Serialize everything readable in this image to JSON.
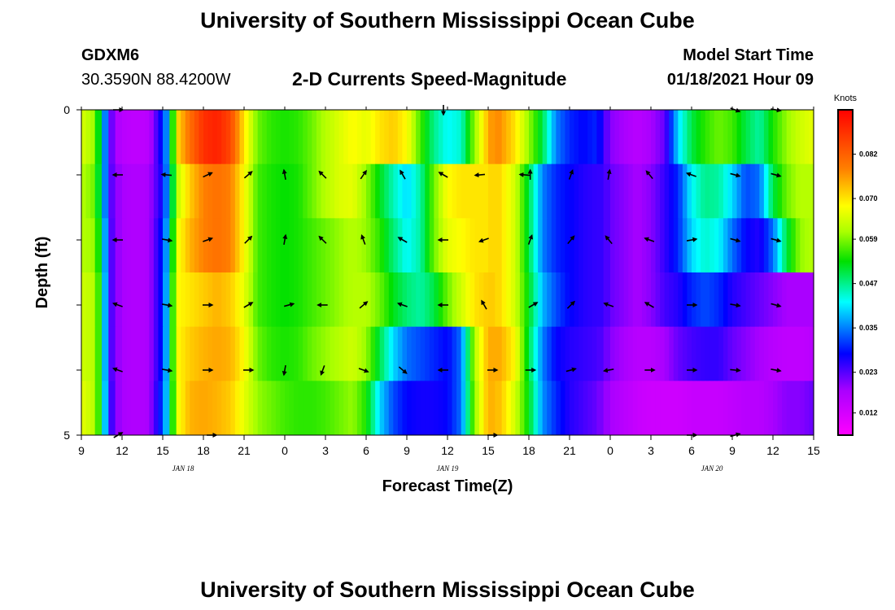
{
  "header": {
    "title": "University of Southern Mississippi Ocean Cube",
    "station_id": "GDXM6",
    "coordinates": "30.3590N 88.4200W",
    "product": "2-D Currents Speed-Magnitude",
    "model_start_label": "Model Start Time",
    "model_start_value": "01/18/2021 Hour 09"
  },
  "footer": {
    "title": "University of Southern Mississippi Ocean Cube"
  },
  "chart_data": {
    "type": "heatmap",
    "title": "2-D Currents Speed-Magnitude",
    "xlabel": "Forecast Time(Z)",
    "ylabel": "Depth (ft)",
    "x_tick_labels": [
      "9",
      "12",
      "15",
      "18",
      "21",
      "0",
      "3",
      "6",
      "9",
      "12",
      "15",
      "18",
      "21",
      "0",
      "3",
      "6",
      "9",
      "12",
      "15"
    ],
    "x_range_hours": [
      0,
      54
    ],
    "date_labels": [
      {
        "label": "JAN 18",
        "hour": 7.5
      },
      {
        "label": "JAN 19",
        "hour": 27
      },
      {
        "label": "JAN 20",
        "hour": 46.5
      }
    ],
    "y_tick_labels": [
      "0",
      "",
      "",
      "",
      "",
      "5"
    ],
    "ylim": [
      0,
      5
    ],
    "colorbar": {
      "unit": "Knots",
      "tick_labels": [
        "0.012",
        "0.023",
        "0.035",
        "0.047",
        "0.059",
        "0.070",
        "0.082"
      ],
      "range": [
        0.006,
        0.094
      ],
      "stops": [
        {
          "v": 0.006,
          "color": "#ff00ff"
        },
        {
          "v": 0.018,
          "color": "#aa00ff"
        },
        {
          "v": 0.028,
          "color": "#0000ff"
        },
        {
          "v": 0.042,
          "color": "#00ffff"
        },
        {
          "v": 0.053,
          "color": "#00e000"
        },
        {
          "v": 0.061,
          "color": "#aaff00"
        },
        {
          "v": 0.068,
          "color": "#ffff00"
        },
        {
          "v": 0.078,
          "color": "#ff8000"
        },
        {
          "v": 0.094,
          "color": "#ff0000"
        }
      ]
    },
    "depth_row_keys": [
      "surface",
      "d1",
      "d2",
      "d3",
      "d4",
      "bottom"
    ],
    "speed_grid": {
      "hours": [
        0,
        1,
        1.5,
        2,
        2.5,
        3,
        4,
        5,
        6,
        6.5,
        7,
        8,
        9,
        10,
        11,
        12,
        13,
        14,
        15,
        16,
        17,
        18,
        19,
        20,
        21,
        22,
        23,
        24,
        25,
        26,
        27,
        28,
        29,
        30,
        30.5,
        31,
        32,
        33,
        34,
        35,
        36,
        37,
        38,
        38.5,
        39,
        40,
        41,
        42,
        43,
        44,
        45,
        46,
        47,
        48,
        49,
        50,
        51,
        52,
        53,
        54
      ],
      "surface": [
        0.065,
        0.06,
        0.045,
        0.025,
        0.018,
        0.016,
        0.015,
        0.016,
        0.03,
        0.04,
        0.07,
        0.08,
        0.088,
        0.09,
        0.085,
        0.07,
        0.058,
        0.055,
        0.054,
        0.055,
        0.058,
        0.062,
        0.065,
        0.068,
        0.066,
        0.07,
        0.072,
        0.068,
        0.056,
        0.047,
        0.042,
        0.044,
        0.06,
        0.074,
        0.078,
        0.076,
        0.07,
        0.06,
        0.05,
        0.035,
        0.03,
        0.028,
        0.03,
        0.025,
        0.02,
        0.018,
        0.016,
        0.018,
        0.022,
        0.04,
        0.05,
        0.055,
        0.058,
        0.056,
        0.05,
        0.046,
        0.054,
        0.06,
        0.064,
        0.066
      ],
      "d1": [
        0.062,
        0.058,
        0.045,
        0.025,
        0.02,
        0.018,
        0.017,
        0.018,
        0.028,
        0.04,
        0.062,
        0.072,
        0.078,
        0.08,
        0.078,
        0.068,
        0.056,
        0.054,
        0.053,
        0.054,
        0.058,
        0.062,
        0.065,
        0.066,
        0.06,
        0.052,
        0.045,
        0.04,
        0.046,
        0.058,
        0.068,
        0.07,
        0.07,
        0.07,
        0.072,
        0.07,
        0.064,
        0.05,
        0.035,
        0.03,
        0.028,
        0.026,
        0.025,
        0.025,
        0.022,
        0.02,
        0.018,
        0.02,
        0.025,
        0.03,
        0.042,
        0.047,
        0.046,
        0.04,
        0.032,
        0.034,
        0.05,
        0.058,
        0.062,
        0.062
      ],
      "d2": [
        0.062,
        0.06,
        0.048,
        0.026,
        0.02,
        0.018,
        0.017,
        0.018,
        0.03,
        0.042,
        0.066,
        0.074,
        0.078,
        0.08,
        0.078,
        0.068,
        0.056,
        0.054,
        0.053,
        0.054,
        0.056,
        0.058,
        0.06,
        0.062,
        0.06,
        0.055,
        0.048,
        0.042,
        0.046,
        0.058,
        0.066,
        0.068,
        0.07,
        0.07,
        0.072,
        0.07,
        0.064,
        0.05,
        0.035,
        0.03,
        0.028,
        0.026,
        0.025,
        0.025,
        0.022,
        0.02,
        0.018,
        0.02,
        0.025,
        0.03,
        0.04,
        0.044,
        0.042,
        0.034,
        0.028,
        0.026,
        0.034,
        0.05,
        0.06,
        0.062
      ],
      "d3": [
        0.064,
        0.062,
        0.05,
        0.026,
        0.02,
        0.018,
        0.017,
        0.018,
        0.03,
        0.044,
        0.068,
        0.07,
        0.072,
        0.074,
        0.072,
        0.066,
        0.056,
        0.054,
        0.053,
        0.054,
        0.056,
        0.058,
        0.06,
        0.062,
        0.062,
        0.058,
        0.052,
        0.048,
        0.046,
        0.05,
        0.058,
        0.064,
        0.07,
        0.072,
        0.072,
        0.07,
        0.064,
        0.052,
        0.038,
        0.032,
        0.028,
        0.026,
        0.025,
        0.025,
        0.022,
        0.02,
        0.018,
        0.02,
        0.024,
        0.026,
        0.03,
        0.032,
        0.03,
        0.026,
        0.024,
        0.022,
        0.02,
        0.018,
        0.018,
        0.018
      ],
      "d4": [
        0.064,
        0.062,
        0.05,
        0.026,
        0.02,
        0.018,
        0.017,
        0.018,
        0.03,
        0.044,
        0.068,
        0.072,
        0.074,
        0.075,
        0.074,
        0.068,
        0.058,
        0.055,
        0.054,
        0.055,
        0.058,
        0.06,
        0.062,
        0.064,
        0.06,
        0.05,
        0.04,
        0.034,
        0.032,
        0.03,
        0.028,
        0.034,
        0.062,
        0.074,
        0.075,
        0.074,
        0.068,
        0.05,
        0.035,
        0.028,
        0.026,
        0.025,
        0.024,
        0.023,
        0.02,
        0.018,
        0.016,
        0.016,
        0.018,
        0.022,
        0.024,
        0.025,
        0.025,
        0.022,
        0.02,
        0.018,
        0.016,
        0.015,
        0.015,
        0.016
      ],
      "bottom": [
        0.066,
        0.062,
        0.05,
        0.028,
        0.02,
        0.018,
        0.017,
        0.018,
        0.032,
        0.044,
        0.066,
        0.074,
        0.075,
        0.074,
        0.072,
        0.066,
        0.06,
        0.058,
        0.056,
        0.055,
        0.055,
        0.056,
        0.058,
        0.06,
        0.054,
        0.04,
        0.032,
        0.028,
        0.027,
        0.027,
        0.028,
        0.034,
        0.06,
        0.074,
        0.074,
        0.072,
        0.064,
        0.052,
        0.036,
        0.03,
        0.026,
        0.024,
        0.022,
        0.02,
        0.018,
        0.016,
        0.014,
        0.013,
        0.013,
        0.013,
        0.014,
        0.014,
        0.014,
        0.015,
        0.016,
        0.016,
        0.018,
        0.02,
        0.02,
        0.022
      ]
    },
    "arrow_layers": [
      {
        "depth": 0,
        "vectors": [
          {
            "hour": 2.7,
            "deg": 0
          },
          {
            "hour": 26.7,
            "deg": 90
          },
          {
            "hour": 48.2,
            "deg": 20
          },
          {
            "hour": 51.2,
            "deg": 10
          }
        ]
      },
      {
        "depth": 1,
        "vectors": [
          {
            "hour": 2.7,
            "deg": 180
          },
          {
            "hour": 6.3,
            "deg": 185
          },
          {
            "hour": 9.3,
            "deg": -25
          },
          {
            "hour": 12.3,
            "deg": -40
          },
          {
            "hour": 15.0,
            "deg": -100
          },
          {
            "hour": 17.8,
            "deg": -135
          },
          {
            "hour": 20.8,
            "deg": -55
          },
          {
            "hour": 23.7,
            "deg": -120
          },
          {
            "hour": 26.7,
            "deg": -150
          },
          {
            "hour": 29.4,
            "deg": 175
          },
          {
            "hour": 32.7,
            "deg": 185
          },
          {
            "hour": 33.1,
            "deg": -90
          },
          {
            "hour": 36.1,
            "deg": -70
          },
          {
            "hour": 38.9,
            "deg": -80
          },
          {
            "hour": 41.9,
            "deg": -130
          },
          {
            "hour": 45.0,
            "deg": -160
          },
          {
            "hour": 48.2,
            "deg": 15
          },
          {
            "hour": 51.2,
            "deg": 15
          }
        ]
      },
      {
        "depth": 2,
        "vectors": [
          {
            "hour": 2.7,
            "deg": 180
          },
          {
            "hour": 6.3,
            "deg": 10
          },
          {
            "hour": 9.3,
            "deg": -20
          },
          {
            "hour": 12.3,
            "deg": -45
          },
          {
            "hour": 15.0,
            "deg": -80
          },
          {
            "hour": 17.8,
            "deg": -135
          },
          {
            "hour": 20.8,
            "deg": -110
          },
          {
            "hour": 23.7,
            "deg": -150
          },
          {
            "hour": 26.7,
            "deg": 180
          },
          {
            "hour": 29.7,
            "deg": 160
          },
          {
            "hour": 33.1,
            "deg": -70
          },
          {
            "hour": 36.1,
            "deg": -50
          },
          {
            "hour": 38.9,
            "deg": -130
          },
          {
            "hour": 41.9,
            "deg": -160
          },
          {
            "hour": 45.0,
            "deg": -10
          },
          {
            "hour": 48.2,
            "deg": 15
          },
          {
            "hour": 51.2,
            "deg": 15
          }
        ]
      },
      {
        "depth": 3,
        "vectors": [
          {
            "hour": 2.7,
            "deg": -160
          },
          {
            "hour": 6.3,
            "deg": 10
          },
          {
            "hour": 9.3,
            "deg": 0
          },
          {
            "hour": 12.3,
            "deg": -30
          },
          {
            "hour": 15.3,
            "deg": -15
          },
          {
            "hour": 17.8,
            "deg": 180
          },
          {
            "hour": 20.8,
            "deg": -40
          },
          {
            "hour": 23.7,
            "deg": -160
          },
          {
            "hour": 26.7,
            "deg": 180
          },
          {
            "hour": 29.7,
            "deg": -120
          },
          {
            "hour": 33.3,
            "deg": -30
          },
          {
            "hour": 36.1,
            "deg": -45
          },
          {
            "hour": 38.9,
            "deg": -160
          },
          {
            "hour": 41.9,
            "deg": -150
          },
          {
            "hour": 45.0,
            "deg": 0
          },
          {
            "hour": 48.2,
            "deg": 10
          },
          {
            "hour": 51.2,
            "deg": 15
          }
        ]
      },
      {
        "depth": 4,
        "vectors": [
          {
            "hour": 2.7,
            "deg": -160
          },
          {
            "hour": 6.3,
            "deg": 10
          },
          {
            "hour": 9.3,
            "deg": 0
          },
          {
            "hour": 12.3,
            "deg": 0
          },
          {
            "hour": 15.0,
            "deg": 100
          },
          {
            "hour": 17.8,
            "deg": 110
          },
          {
            "hour": 20.8,
            "deg": 20
          },
          {
            "hour": 23.7,
            "deg": 40
          },
          {
            "hour": 26.7,
            "deg": 180
          },
          {
            "hour": 30.3,
            "deg": 0
          },
          {
            "hour": 33.1,
            "deg": 0
          },
          {
            "hour": 36.1,
            "deg": -15
          },
          {
            "hour": 38.9,
            "deg": 170
          },
          {
            "hour": 41.9,
            "deg": 0
          },
          {
            "hour": 45.0,
            "deg": 0
          },
          {
            "hour": 48.2,
            "deg": 5
          },
          {
            "hour": 51.2,
            "deg": 10
          }
        ]
      },
      {
        "depth": 5,
        "vectors": [
          {
            "hour": 2.7,
            "deg": -30
          },
          {
            "hour": 9.6,
            "deg": 0
          },
          {
            "hour": 30.3,
            "deg": 0
          },
          {
            "hour": 45.0,
            "deg": 0
          },
          {
            "hour": 48.2,
            "deg": -15
          }
        ]
      }
    ]
  }
}
